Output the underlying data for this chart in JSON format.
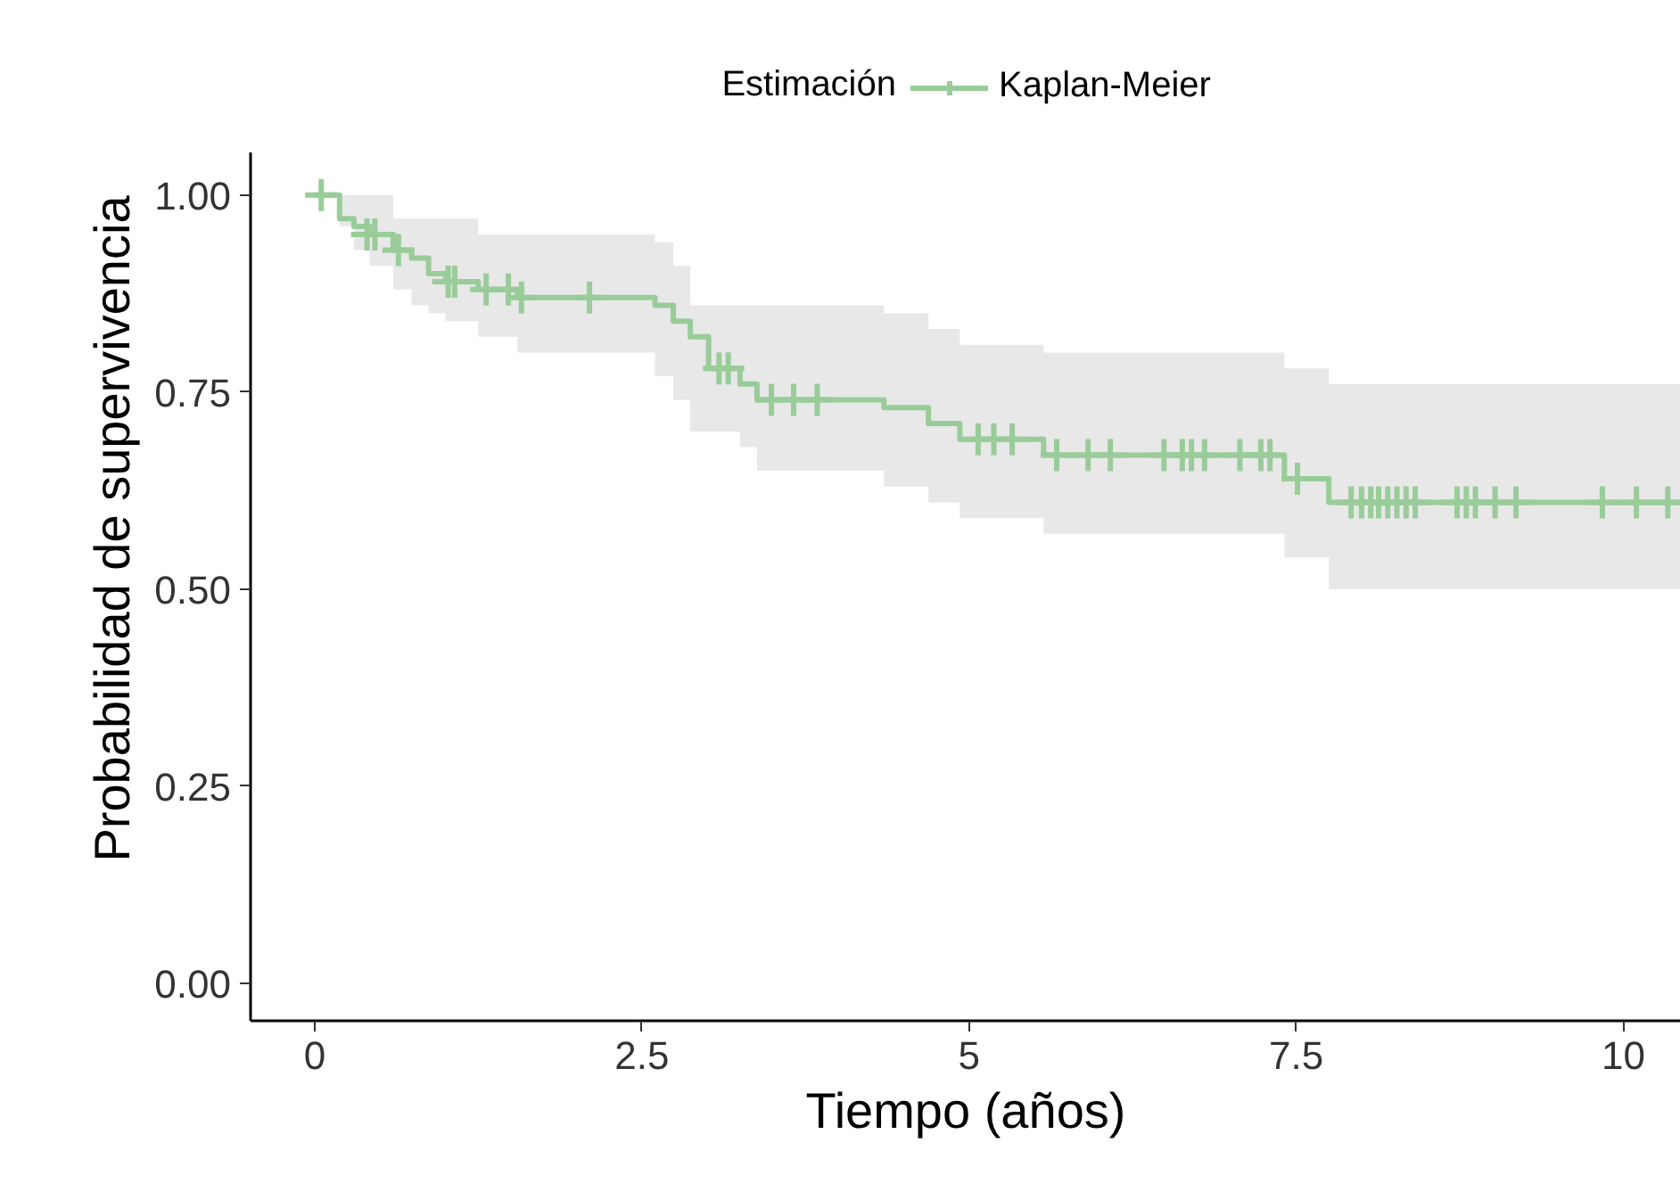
{
  "chart_data": {
    "type": "step",
    "xlabel": "Tiempo (años)",
    "ylabel": "Probabilidad de supervivencia",
    "legend_title": "Estimación",
    "legend": "top",
    "grid": false,
    "xlim": [
      -0.49,
      10.44
    ],
    "ylim": [
      -0.048,
      1.054
    ],
    "xticks": [
      0,
      2.5,
      5,
      7.5,
      10
    ],
    "yticks": [
      {
        "value": 0,
        "label": "0.00"
      },
      {
        "value": 0.25,
        "label": "0.25"
      },
      {
        "value": 0.5,
        "label": "0.50"
      },
      {
        "value": 0.75,
        "label": "0.75"
      },
      {
        "value": 1,
        "label": "1.00"
      }
    ],
    "series": [
      {
        "name": "Kaplan-Meier",
        "color": "#99cc99",
        "x": [
          0,
          0.19,
          0.3,
          0.42,
          0.6,
          0.74,
          0.87,
          1.0,
          1.25,
          1.55,
          2.6,
          2.74,
          2.87,
          3.01,
          3.25,
          3.38,
          4.35,
          4.69,
          4.93,
          5.57,
          7.41,
          7.75,
          10.44
        ],
        "values": [
          1.0,
          0.97,
          0.96,
          0.95,
          0.93,
          0.92,
          0.9,
          0.89,
          0.88,
          0.87,
          0.86,
          0.84,
          0.82,
          0.78,
          0.76,
          0.74,
          0.73,
          0.71,
          0.69,
          0.67,
          0.64,
          0.61,
          0.61
        ],
        "lower": [
          1.0,
          0.96,
          0.93,
          0.91,
          0.88,
          0.86,
          0.85,
          0.84,
          0.82,
          0.8,
          0.77,
          0.74,
          0.7,
          0.7,
          0.68,
          0.65,
          0.63,
          0.61,
          0.59,
          0.57,
          0.54,
          0.5,
          0.5
        ],
        "upper": [
          1.0,
          1.0,
          1.0,
          1.0,
          0.97,
          0.97,
          0.97,
          0.97,
          0.95,
          0.95,
          0.94,
          0.91,
          0.86,
          0.86,
          0.86,
          0.86,
          0.85,
          0.83,
          0.81,
          0.8,
          0.78,
          0.76,
          0.76
        ]
      },
      {
        "type": "scatter",
        "color": "#99cc99",
        "marker": "cross",
        "x": [
          0.05,
          0.4,
          0.46,
          0.64,
          1.02,
          1.07,
          1.31,
          1.48,
          1.58,
          2.1,
          3.09,
          3.16,
          3.49,
          3.66,
          3.84,
          5.07,
          5.19,
          5.33,
          5.67,
          5.91,
          6.08,
          6.49,
          6.63,
          6.7,
          6.8,
          7.07,
          7.23,
          7.3,
          7.51,
          7.92,
          8.0,
          8.07,
          8.13,
          8.2,
          8.27,
          8.34,
          8.41,
          8.73,
          8.8,
          8.87,
          9.02,
          9.18,
          9.84,
          10.1,
          10.34
        ],
        "values": [
          1.0,
          0.95,
          0.95,
          0.93,
          0.89,
          0.89,
          0.88,
          0.88,
          0.87,
          0.87,
          0.78,
          0.78,
          0.74,
          0.74,
          0.74,
          0.69,
          0.69,
          0.69,
          0.67,
          0.67,
          0.67,
          0.67,
          0.67,
          0.67,
          0.67,
          0.67,
          0.67,
          0.67,
          0.64,
          0.61,
          0.61,
          0.61,
          0.61,
          0.61,
          0.61,
          0.61,
          0.61,
          0.61,
          0.61,
          0.61,
          0.61,
          0.61,
          0.61,
          0.61,
          0.61
        ]
      }
    ]
  }
}
